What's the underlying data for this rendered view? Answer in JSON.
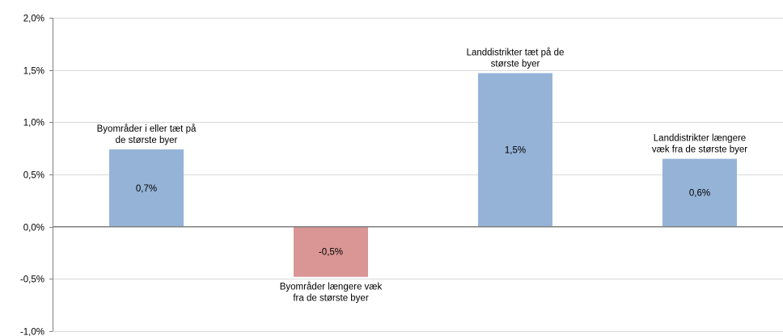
{
  "chart_data": {
    "type": "bar",
    "title": "",
    "xlabel": "",
    "ylabel": "",
    "ylim": [
      -1.0,
      2.0
    ],
    "yticks": [
      -1.0,
      -0.5,
      0.0,
      0.5,
      1.0,
      1.5,
      2.0
    ],
    "ytick_labels": [
      "-1,0%",
      "-0,5%",
      "0,0%",
      "0,5%",
      "1,0%",
      "1,5%",
      "2,0%"
    ],
    "grid": true,
    "legend": "none",
    "bars": [
      {
        "label_lines": [
          "Byområder i eller tæt på",
          "de største byer"
        ],
        "value": 0.74,
        "value_label": "0,7%",
        "color": "#95b3d7"
      },
      {
        "label_lines": [
          "Byområder længere væk",
          "fra de største byer"
        ],
        "value": -0.48,
        "value_label": "-0,5%",
        "color": "#d99694"
      },
      {
        "label_lines": [
          "Landdistrikter tæt på de",
          "største byer"
        ],
        "value": 1.47,
        "value_label": "1,5%",
        "color": "#95b3d7"
      },
      {
        "label_lines": [
          "Landdistrikter længere",
          "væk fra de største byer"
        ],
        "value": 0.65,
        "value_label": "0,6%",
        "color": "#95b3d7"
      }
    ]
  }
}
